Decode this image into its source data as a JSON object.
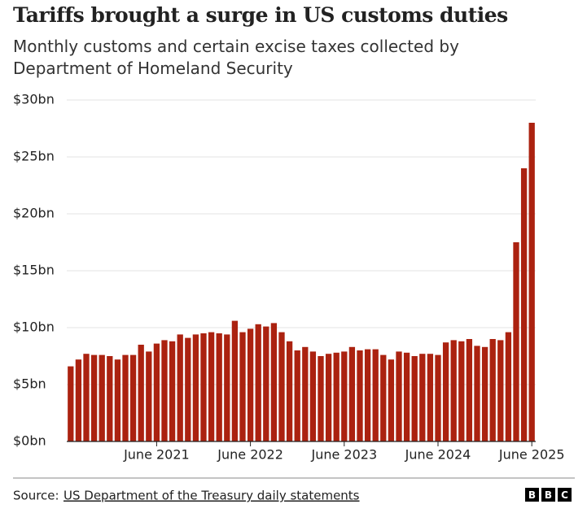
{
  "chart_data": {
    "type": "bar",
    "title": "Tariffs brought a surge in US customs duties",
    "subtitle": "Monthly customs and certain excise taxes collected by Department of Homeland Security",
    "categories": [
      null,
      null,
      null,
      null,
      null,
      null,
      null,
      null,
      null,
      null,
      null,
      "June 2021",
      null,
      null,
      null,
      null,
      null,
      null,
      null,
      null,
      null,
      null,
      null,
      "June 2022",
      null,
      null,
      null,
      null,
      null,
      null,
      null,
      null,
      null,
      null,
      null,
      "June 2023",
      null,
      null,
      null,
      null,
      null,
      null,
      null,
      null,
      null,
      null,
      null,
      "June 2024",
      null,
      null,
      null,
      null,
      null,
      null,
      null,
      null,
      null,
      null,
      null,
      "June 2025"
    ],
    "values": [
      6.6,
      7.2,
      7.7,
      7.6,
      7.6,
      7.5,
      7.2,
      7.6,
      7.6,
      8.5,
      7.9,
      8.6,
      8.9,
      8.8,
      9.4,
      9.1,
      9.4,
      9.5,
      9.6,
      9.5,
      9.4,
      10.6,
      9.6,
      9.9,
      10.3,
      10.1,
      10.4,
      9.6,
      8.8,
      8.0,
      8.3,
      7.9,
      7.5,
      7.7,
      7.8,
      7.9,
      8.3,
      8.0,
      8.1,
      8.1,
      7.6,
      7.2,
      7.9,
      7.8,
      7.5,
      7.7,
      7.7,
      7.6,
      8.7,
      8.9,
      8.8,
      9.0,
      8.4,
      8.3,
      9.0,
      8.9,
      9.6,
      17.5,
      24.0,
      28.0
    ],
    "color": "#ab2210",
    "ylim": [
      0,
      30
    ],
    "yticks": [
      {
        "value": 0,
        "label": "$0bn"
      },
      {
        "value": 5,
        "label": "$5bn"
      },
      {
        "value": 10,
        "label": "$10bn"
      },
      {
        "value": 15,
        "label": "$15bn"
      },
      {
        "value": 20,
        "label": "$20bn"
      },
      {
        "value": 25,
        "label": "$25bn"
      },
      {
        "value": 30,
        "label": "$30bn"
      }
    ],
    "grid": true,
    "source_label": "Source:",
    "source": "US Department of the Treasury daily statements",
    "logo": [
      "B",
      "B",
      "C"
    ]
  }
}
